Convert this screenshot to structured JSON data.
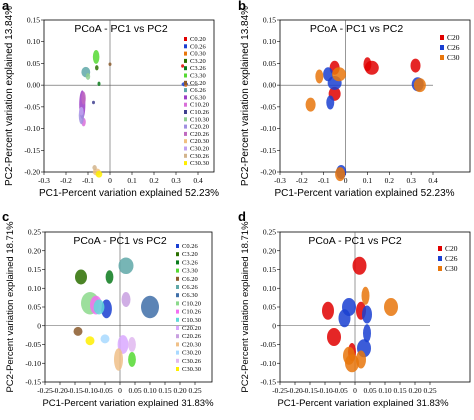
{
  "chart_data": [
    {
      "panel_letter": "a",
      "type": "scatter",
      "title": "PCoA - PC1 vs PC2",
      "xlabel": "PC1-Percent variation explained 52.23%",
      "ylabel": "PC2-Percent variation explained 13.84%",
      "xlim": [
        -0.3,
        0.4
      ],
      "ylim": [
        -0.2,
        0.15
      ],
      "xticks": [
        -0.3,
        -0.2,
        -0.1,
        0,
        0.1,
        0.2,
        0.3,
        0.4
      ],
      "xtick_labels": [
        "-0.3",
        "-0.2",
        "-0.1",
        "0",
        "0.1",
        "0.2",
        "0.3",
        "0.4"
      ],
      "yticks": [
        0.15,
        0.1,
        0.05,
        0,
        -0.05,
        -0.1,
        -0.15,
        -0.2
      ],
      "ytick_labels": [
        "0.15",
        "0.10",
        "0.05",
        "0.00",
        "-0.05",
        "-0.10",
        "-0.15",
        "-0.20"
      ],
      "legend_position": "right",
      "series": [
        {
          "name": "C0.20",
          "color": "#e00000",
          "x": 0.33,
          "y": 0.044,
          "rx": 0.004,
          "ry": 0.004
        },
        {
          "name": "C0.26",
          "color": "#1a3fd1",
          "x": 0.34,
          "y": 0.002,
          "rx": 0.015,
          "ry": 0.005
        },
        {
          "name": "C0.30",
          "color": "#e8760c",
          "x": 0.345,
          "y": 0.0,
          "rx": 0.007,
          "ry": 0.004
        },
        {
          "name": "C3.20",
          "color": "#2b6f00",
          "x": -0.06,
          "y": 0.04,
          "rx": 0.008,
          "ry": 0.006
        },
        {
          "name": "C3.26",
          "color": "#0a7a1c",
          "x": -0.05,
          "y": 0.003,
          "rx": 0.006,
          "ry": 0.005
        },
        {
          "name": "C3.30",
          "color": "#55d933",
          "x": -0.063,
          "y": 0.065,
          "rx": 0.015,
          "ry": 0.016
        },
        {
          "name": "C6.20",
          "color": "#8b5a2b",
          "x": 0.0,
          "y": 0.048,
          "rx": 0.005,
          "ry": 0.004
        },
        {
          "name": "C6.26",
          "color": "#5fa8a8",
          "x": -0.11,
          "y": 0.03,
          "rx": 0.02,
          "ry": 0.012
        },
        {
          "name": "C6.30",
          "color": "#9b3dc6",
          "x": -0.126,
          "y": -0.045,
          "rx": 0.014,
          "ry": 0.033
        },
        {
          "name": "C10.20",
          "color": "#d96fd9",
          "x": -0.12,
          "y": -0.085,
          "rx": 0.01,
          "ry": 0.01
        },
        {
          "name": "C10.26",
          "color": "#3f3f8f",
          "x": -0.075,
          "y": -0.04,
          "rx": 0.004,
          "ry": 0.004
        },
        {
          "name": "C10.30",
          "color": "#8fcf8f",
          "x": -0.1,
          "y": 0.02,
          "rx": 0.01,
          "ry": 0.008
        },
        {
          "name": "C20.20",
          "color": "#a08fe0",
          "x": -0.13,
          "y": -0.07,
          "rx": 0.012,
          "ry": 0.02
        },
        {
          "name": "C20.26",
          "color": "#c06ac0",
          "x": -0.12,
          "y": -0.03,
          "rx": 0.01,
          "ry": 0.015
        },
        {
          "name": "C20.30",
          "color": "#f0c080",
          "x": -0.06,
          "y": -0.2,
          "rx": 0.018,
          "ry": 0.008
        },
        {
          "name": "C30.20",
          "color": "#c0a0f0",
          "x": -0.13,
          "y": -0.06,
          "rx": 0.01,
          "ry": 0.01
        },
        {
          "name": "C30.26",
          "color": "#d2b48c",
          "x": -0.07,
          "y": -0.19,
          "rx": 0.01,
          "ry": 0.006
        },
        {
          "name": "C30.30",
          "color": "#ffee00",
          "x": -0.05,
          "y": -0.205,
          "rx": 0.015,
          "ry": 0.008
        }
      ]
    },
    {
      "panel_letter": "b",
      "type": "scatter",
      "title": "PCoA - PC1 vs PC2",
      "xlabel": "PC1-Percent variation explained 52.23%",
      "ylabel": "PC2-Percent variation explained 13.84%",
      "xlim": [
        -0.3,
        0.4
      ],
      "ylim": [
        -0.2,
        0.15
      ],
      "xticks": [
        -0.3,
        -0.2,
        -0.1,
        0,
        0.1,
        0.2,
        0.3,
        0.4
      ],
      "xtick_labels": [
        "-0.3",
        "-0.2",
        "-0.1",
        "0",
        "0.1",
        "0.2",
        "0.3",
        "0.4"
      ],
      "yticks": [
        0.15,
        0.1,
        0.05,
        0,
        -0.05,
        -0.1,
        -0.15,
        -0.2
      ],
      "ytick_labels": [
        "0.15",
        "0.10",
        "0.05",
        "0.00",
        "-0.05",
        "-0.10",
        "-0.15",
        "-0.20"
      ],
      "legend_position": "right",
      "series": [
        {
          "name": "C20",
          "color": "#e00000",
          "points": [
            [
              -0.05,
              0.04
            ],
            [
              0.1,
              0.048
            ],
            [
              0.12,
              0.04
            ],
            [
              -0.05,
              -0.02
            ],
            [
              0.32,
              0.045
            ]
          ]
        },
        {
          "name": "C26",
          "color": "#1a3fd1",
          "points": [
            [
              -0.08,
              0.025
            ],
            [
              -0.07,
              -0.04
            ],
            [
              -0.05,
              0.005
            ],
            [
              0.33,
              0.002
            ],
            [
              -0.02,
              -0.2
            ]
          ]
        },
        {
          "name": "C30",
          "color": "#e8760c",
          "points": [
            [
              -0.16,
              -0.045
            ],
            [
              -0.12,
              0.02
            ],
            [
              -0.03,
              0.025
            ],
            [
              0.34,
              0.0
            ],
            [
              -0.025,
              -0.205
            ]
          ]
        }
      ]
    },
    {
      "panel_letter": "c",
      "type": "scatter",
      "title": "PCoA - PC1 vs PC2",
      "xlabel": "PC1-Percent variation explained 31.83%",
      "ylabel": "PC2-Percent variation explained 18.71%",
      "xlim": [
        -0.25,
        0.25
      ],
      "ylim": [
        -0.15,
        0.25
      ],
      "xticks": [
        -0.25,
        -0.2,
        -0.15,
        -0.1,
        -0.05,
        0,
        0.05,
        0.1,
        0.15,
        0.2,
        0.25
      ],
      "xtick_labels": [
        "-0.25",
        "-0.20",
        "-0.15",
        "-0.10",
        "-0.05",
        "0",
        "0.05",
        "0.10",
        "0.15",
        "0.20",
        "0.25"
      ],
      "yticks": [
        0.25,
        0.2,
        0.15,
        0.1,
        0.05,
        0,
        -0.05,
        -0.1,
        -0.15
      ],
      "ytick_labels": [
        "0.25",
        "0.20",
        "0.15",
        "0.10",
        "0.05",
        "0",
        "-0.05",
        "-0.10",
        "-0.15"
      ],
      "legend_position": "right",
      "series": [
        {
          "name": "C0.26",
          "color": "#1a3fd1",
          "x": -0.045,
          "y": 0.045,
          "rx": 0.018,
          "ry": 0.025
        },
        {
          "name": "C3.20",
          "color": "#2b6f00",
          "x": -0.13,
          "y": 0.13,
          "rx": 0.02,
          "ry": 0.02
        },
        {
          "name": "C3.26",
          "color": "#0a7a1c",
          "x": -0.035,
          "y": 0.13,
          "rx": 0.013,
          "ry": 0.018
        },
        {
          "name": "C3.30",
          "color": "#55d933",
          "x": 0.04,
          "y": -0.09,
          "rx": 0.013,
          "ry": 0.02
        },
        {
          "name": "C6.20",
          "color": "#8b5a2b",
          "x": -0.14,
          "y": -0.015,
          "rx": 0.015,
          "ry": 0.012
        },
        {
          "name": "C6.26",
          "color": "#5fa8a8",
          "x": 0.02,
          "y": 0.16,
          "rx": 0.025,
          "ry": 0.022
        },
        {
          "name": "C6.30",
          "color": "#3f6fa8",
          "x": 0.1,
          "y": 0.05,
          "rx": 0.03,
          "ry": 0.03
        },
        {
          "name": "C10.20",
          "color": "#8cd98c",
          "x": -0.1,
          "y": 0.06,
          "rx": 0.03,
          "ry": 0.03
        },
        {
          "name": "C10.26",
          "color": "#f26ff2",
          "x": -0.08,
          "y": 0.055,
          "rx": 0.02,
          "ry": 0.025
        },
        {
          "name": "C10.30",
          "color": "#5fd9d9",
          "x": -0.07,
          "y": 0.05,
          "rx": 0.018,
          "ry": 0.02
        },
        {
          "name": "C20.20",
          "color": "#d9a8ff",
          "x": 0.01,
          "y": -0.05,
          "rx": 0.018,
          "ry": 0.025
        },
        {
          "name": "C20.26",
          "color": "#c8a0e0",
          "x": 0.02,
          "y": 0.07,
          "rx": 0.015,
          "ry": 0.02
        },
        {
          "name": "C20.30",
          "color": "#f0c088",
          "x": -0.005,
          "y": -0.09,
          "rx": 0.015,
          "ry": 0.03
        },
        {
          "name": "C30.20",
          "color": "#a8d9ff",
          "x": -0.05,
          "y": -0.035,
          "rx": 0.015,
          "ry": 0.012
        },
        {
          "name": "C30.26",
          "color": "#e0b8f0",
          "x": 0.04,
          "y": -0.05,
          "rx": 0.013,
          "ry": 0.02
        },
        {
          "name": "C30.30",
          "color": "#ffee00",
          "x": -0.1,
          "y": -0.04,
          "rx": 0.015,
          "ry": 0.012
        }
      ]
    },
    {
      "panel_letter": "d",
      "type": "scatter",
      "title": "PCoA - PC1 vs PC2",
      "xlabel": "PC1-Percent variation explained 31.83%",
      "ylabel": "PC2-Percent variation explained 18.71%",
      "xlim": [
        -0.25,
        0.25
      ],
      "ylim": [
        -0.15,
        0.25
      ],
      "xticks": [
        -0.25,
        -0.2,
        -0.15,
        -0.1,
        -0.05,
        0,
        0.05,
        0.1,
        0.15,
        0.2,
        0.25
      ],
      "xtick_labels": [
        "-0.25",
        "-0.20",
        "-0.15",
        "-0.10",
        "-0.05",
        "0",
        "0.05",
        "0.10",
        "0.15",
        "0.20",
        "0.25"
      ],
      "yticks": [
        0.25,
        0.2,
        0.15,
        0.1,
        0.05,
        0,
        -0.05,
        -0.1,
        -0.15
      ],
      "ytick_labels": [
        "0.25",
        "0.20",
        "0.15",
        "0.10",
        "0.05",
        "0",
        "-0.05",
        "-0.10",
        "-0.15"
      ],
      "legend_position": "right",
      "series": [
        {
          "name": "C20",
          "color": "#e00000",
          "points": [
            [
              0.015,
              0.16
            ],
            [
              -0.09,
              0.04
            ],
            [
              0.02,
              0.04
            ],
            [
              -0.01,
              -0.07
            ],
            [
              -0.07,
              -0.03
            ]
          ]
        },
        {
          "name": "C26",
          "color": "#1a3fd1",
          "points": [
            [
              -0.02,
              0.05
            ],
            [
              -0.035,
              0.02
            ],
            [
              0.04,
              0.03
            ],
            [
              0.04,
              -0.02
            ],
            [
              0.03,
              -0.06
            ]
          ]
        },
        {
          "name": "C30",
          "color": "#e8760c",
          "points": [
            [
              0.12,
              0.05
            ],
            [
              -0.02,
              -0.08
            ],
            [
              0.02,
              -0.09
            ],
            [
              0.035,
              0.08
            ],
            [
              -0.01,
              -0.1
            ]
          ]
        }
      ]
    }
  ]
}
